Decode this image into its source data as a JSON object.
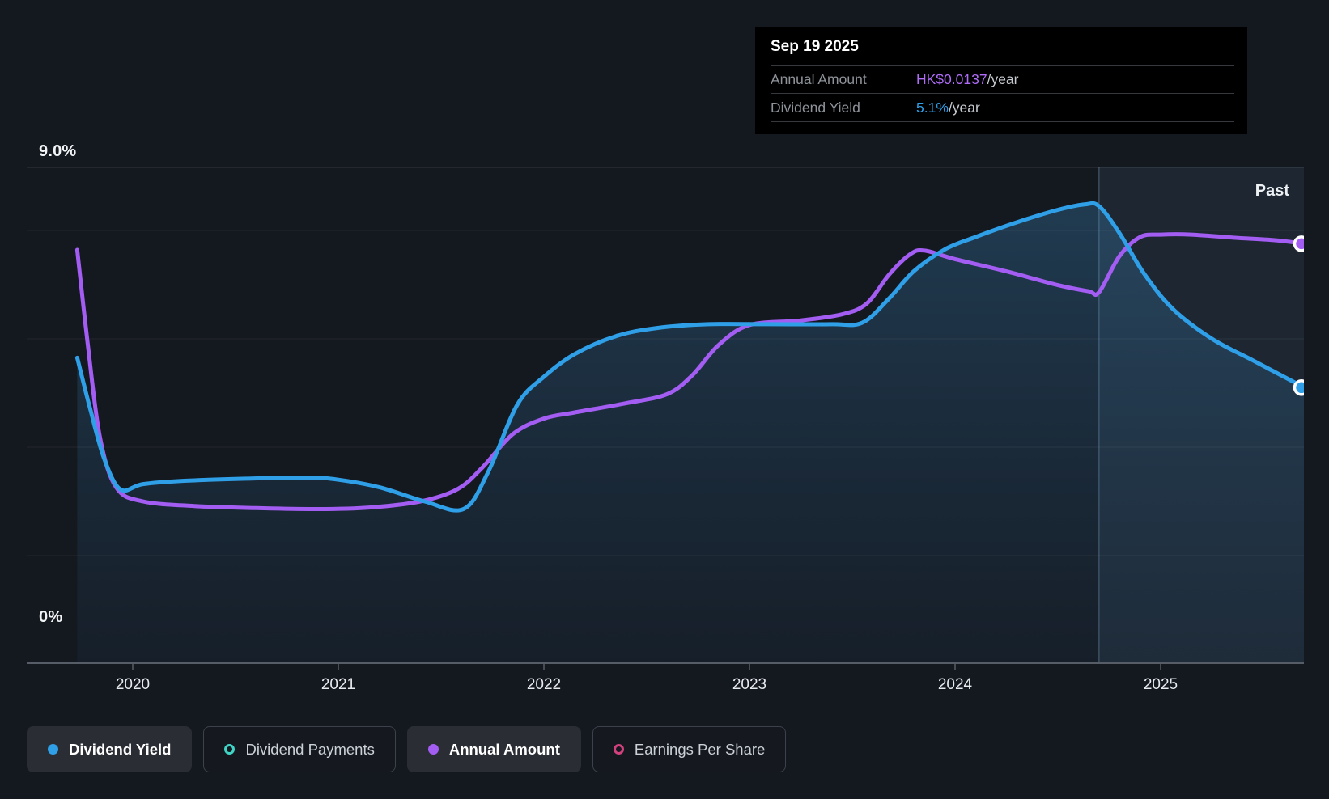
{
  "tooltip": {
    "date": "Sep 19 2025",
    "rows": [
      {
        "label": "Annual Amount",
        "value": "HK$0.0137",
        "suffix": "/year",
        "color": "#b06cf9"
      },
      {
        "label": "Dividend Yield",
        "value": "5.1%",
        "suffix": "/year",
        "color": "#2f9fe8"
      }
    ]
  },
  "y_axis": {
    "top_label": "9.0%",
    "bottom_label": "0%"
  },
  "x_axis": {
    "ticks": [
      "2020",
      "2021",
      "2022",
      "2023",
      "2024",
      "2025"
    ]
  },
  "past_label": "Past",
  "legend": [
    {
      "label": "Dividend Yield",
      "color": "#2f9fe8",
      "style": "filled",
      "active": true
    },
    {
      "label": "Dividend Payments",
      "color": "#3fd4c5",
      "style": "hollow",
      "active": false
    },
    {
      "label": "Annual Amount",
      "color": "#a35df2",
      "style": "filled",
      "active": true
    },
    {
      "label": "Earnings Per Share",
      "color": "#d2417d",
      "style": "hollow",
      "active": false
    }
  ],
  "colors": {
    "background": "#14181F",
    "dividend_yield_line": "#2f9fe8",
    "annual_amount_line": "#a35df2",
    "area_fill": "rgba(64,150,210,0.20)",
    "past_overlay": "rgba(122,168,214,0.10)",
    "gridline": "rgba(255,255,255,0.07)",
    "axis_line": "#575d67"
  },
  "chart_data": {
    "type": "line",
    "title": "Dividend history (hovered at Sep 19 2025: Annual Amount HK$0.0137/year, Dividend Yield 5.1%/year)",
    "x_range": [
      2019.73,
      2025.7
    ],
    "x_tick_years": [
      2020,
      2021,
      2022,
      2023,
      2024,
      2025
    ],
    "y_axis": {
      "unit": "%",
      "min": 0,
      "max": 9,
      "gridlines_pct": [
        2,
        4,
        6,
        8
      ],
      "labels": [
        "9.0%",
        "0%"
      ]
    },
    "past_divider_year": 2024.7,
    "legend_position": "bottom",
    "series": [
      {
        "name": "Dividend Yield",
        "unit": "%",
        "color": "#2f9fe8",
        "area_fill": true,
        "end_marker": true,
        "points": [
          [
            2019.73,
            5.65
          ],
          [
            2019.79,
            4.75
          ],
          [
            2019.86,
            3.8
          ],
          [
            2019.94,
            3.22
          ],
          [
            2020.05,
            3.32
          ],
          [
            2020.25,
            3.38
          ],
          [
            2020.55,
            3.42
          ],
          [
            2020.85,
            3.44
          ],
          [
            2021.0,
            3.4
          ],
          [
            2021.2,
            3.26
          ],
          [
            2021.42,
            3.0
          ],
          [
            2021.61,
            2.86
          ],
          [
            2021.73,
            3.55
          ],
          [
            2021.87,
            4.78
          ],
          [
            2022.0,
            5.3
          ],
          [
            2022.15,
            5.72
          ],
          [
            2022.35,
            6.05
          ],
          [
            2022.55,
            6.2
          ],
          [
            2022.8,
            6.27
          ],
          [
            2023.1,
            6.27
          ],
          [
            2023.4,
            6.27
          ],
          [
            2023.55,
            6.3
          ],
          [
            2023.68,
            6.75
          ],
          [
            2023.8,
            7.25
          ],
          [
            2023.95,
            7.65
          ],
          [
            2024.1,
            7.88
          ],
          [
            2024.3,
            8.15
          ],
          [
            2024.5,
            8.38
          ],
          [
            2024.63,
            8.48
          ],
          [
            2024.7,
            8.45
          ],
          [
            2024.8,
            7.95
          ],
          [
            2024.92,
            7.2
          ],
          [
            2025.06,
            6.55
          ],
          [
            2025.25,
            6.0
          ],
          [
            2025.45,
            5.6
          ],
          [
            2025.7,
            5.1
          ]
        ]
      },
      {
        "name": "Annual Amount",
        "unit": "HK$/year",
        "color": "#a35df2",
        "axis_max": 0.0159,
        "area_fill": false,
        "end_marker": true,
        "points": [
          [
            2019.73,
            0.0135
          ],
          [
            2019.78,
            0.0105
          ],
          [
            2019.84,
            0.0074
          ],
          [
            2019.92,
            0.00575
          ],
          [
            2020.05,
            0.0053
          ],
          [
            2020.3,
            0.00515
          ],
          [
            2020.6,
            0.00508
          ],
          [
            2020.9,
            0.00505
          ],
          [
            2021.15,
            0.0051
          ],
          [
            2021.4,
            0.0053
          ],
          [
            2021.58,
            0.0057
          ],
          [
            2021.7,
            0.0064
          ],
          [
            2021.85,
            0.0075
          ],
          [
            2022.0,
            0.008
          ],
          [
            2022.15,
            0.0082
          ],
          [
            2022.4,
            0.0085
          ],
          [
            2022.6,
            0.0088
          ],
          [
            2022.72,
            0.0094
          ],
          [
            2022.85,
            0.0104
          ],
          [
            2023.0,
            0.01105
          ],
          [
            2023.25,
            0.0112
          ],
          [
            2023.45,
            0.0114
          ],
          [
            2023.57,
            0.01175
          ],
          [
            2023.68,
            0.0127
          ],
          [
            2023.78,
            0.01335
          ],
          [
            2023.85,
            0.01348
          ],
          [
            2024.0,
            0.0132
          ],
          [
            2024.25,
            0.0128
          ],
          [
            2024.5,
            0.01235
          ],
          [
            2024.65,
            0.01215
          ],
          [
            2024.7,
            0.01212
          ],
          [
            2024.8,
            0.0133
          ],
          [
            2024.9,
            0.01392
          ],
          [
            2025.0,
            0.014
          ],
          [
            2025.15,
            0.014
          ],
          [
            2025.35,
            0.0139
          ],
          [
            2025.55,
            0.01382
          ],
          [
            2025.7,
            0.0137
          ]
        ]
      }
    ],
    "inactive_series": [
      "Dividend Payments",
      "Earnings Per Share"
    ]
  }
}
